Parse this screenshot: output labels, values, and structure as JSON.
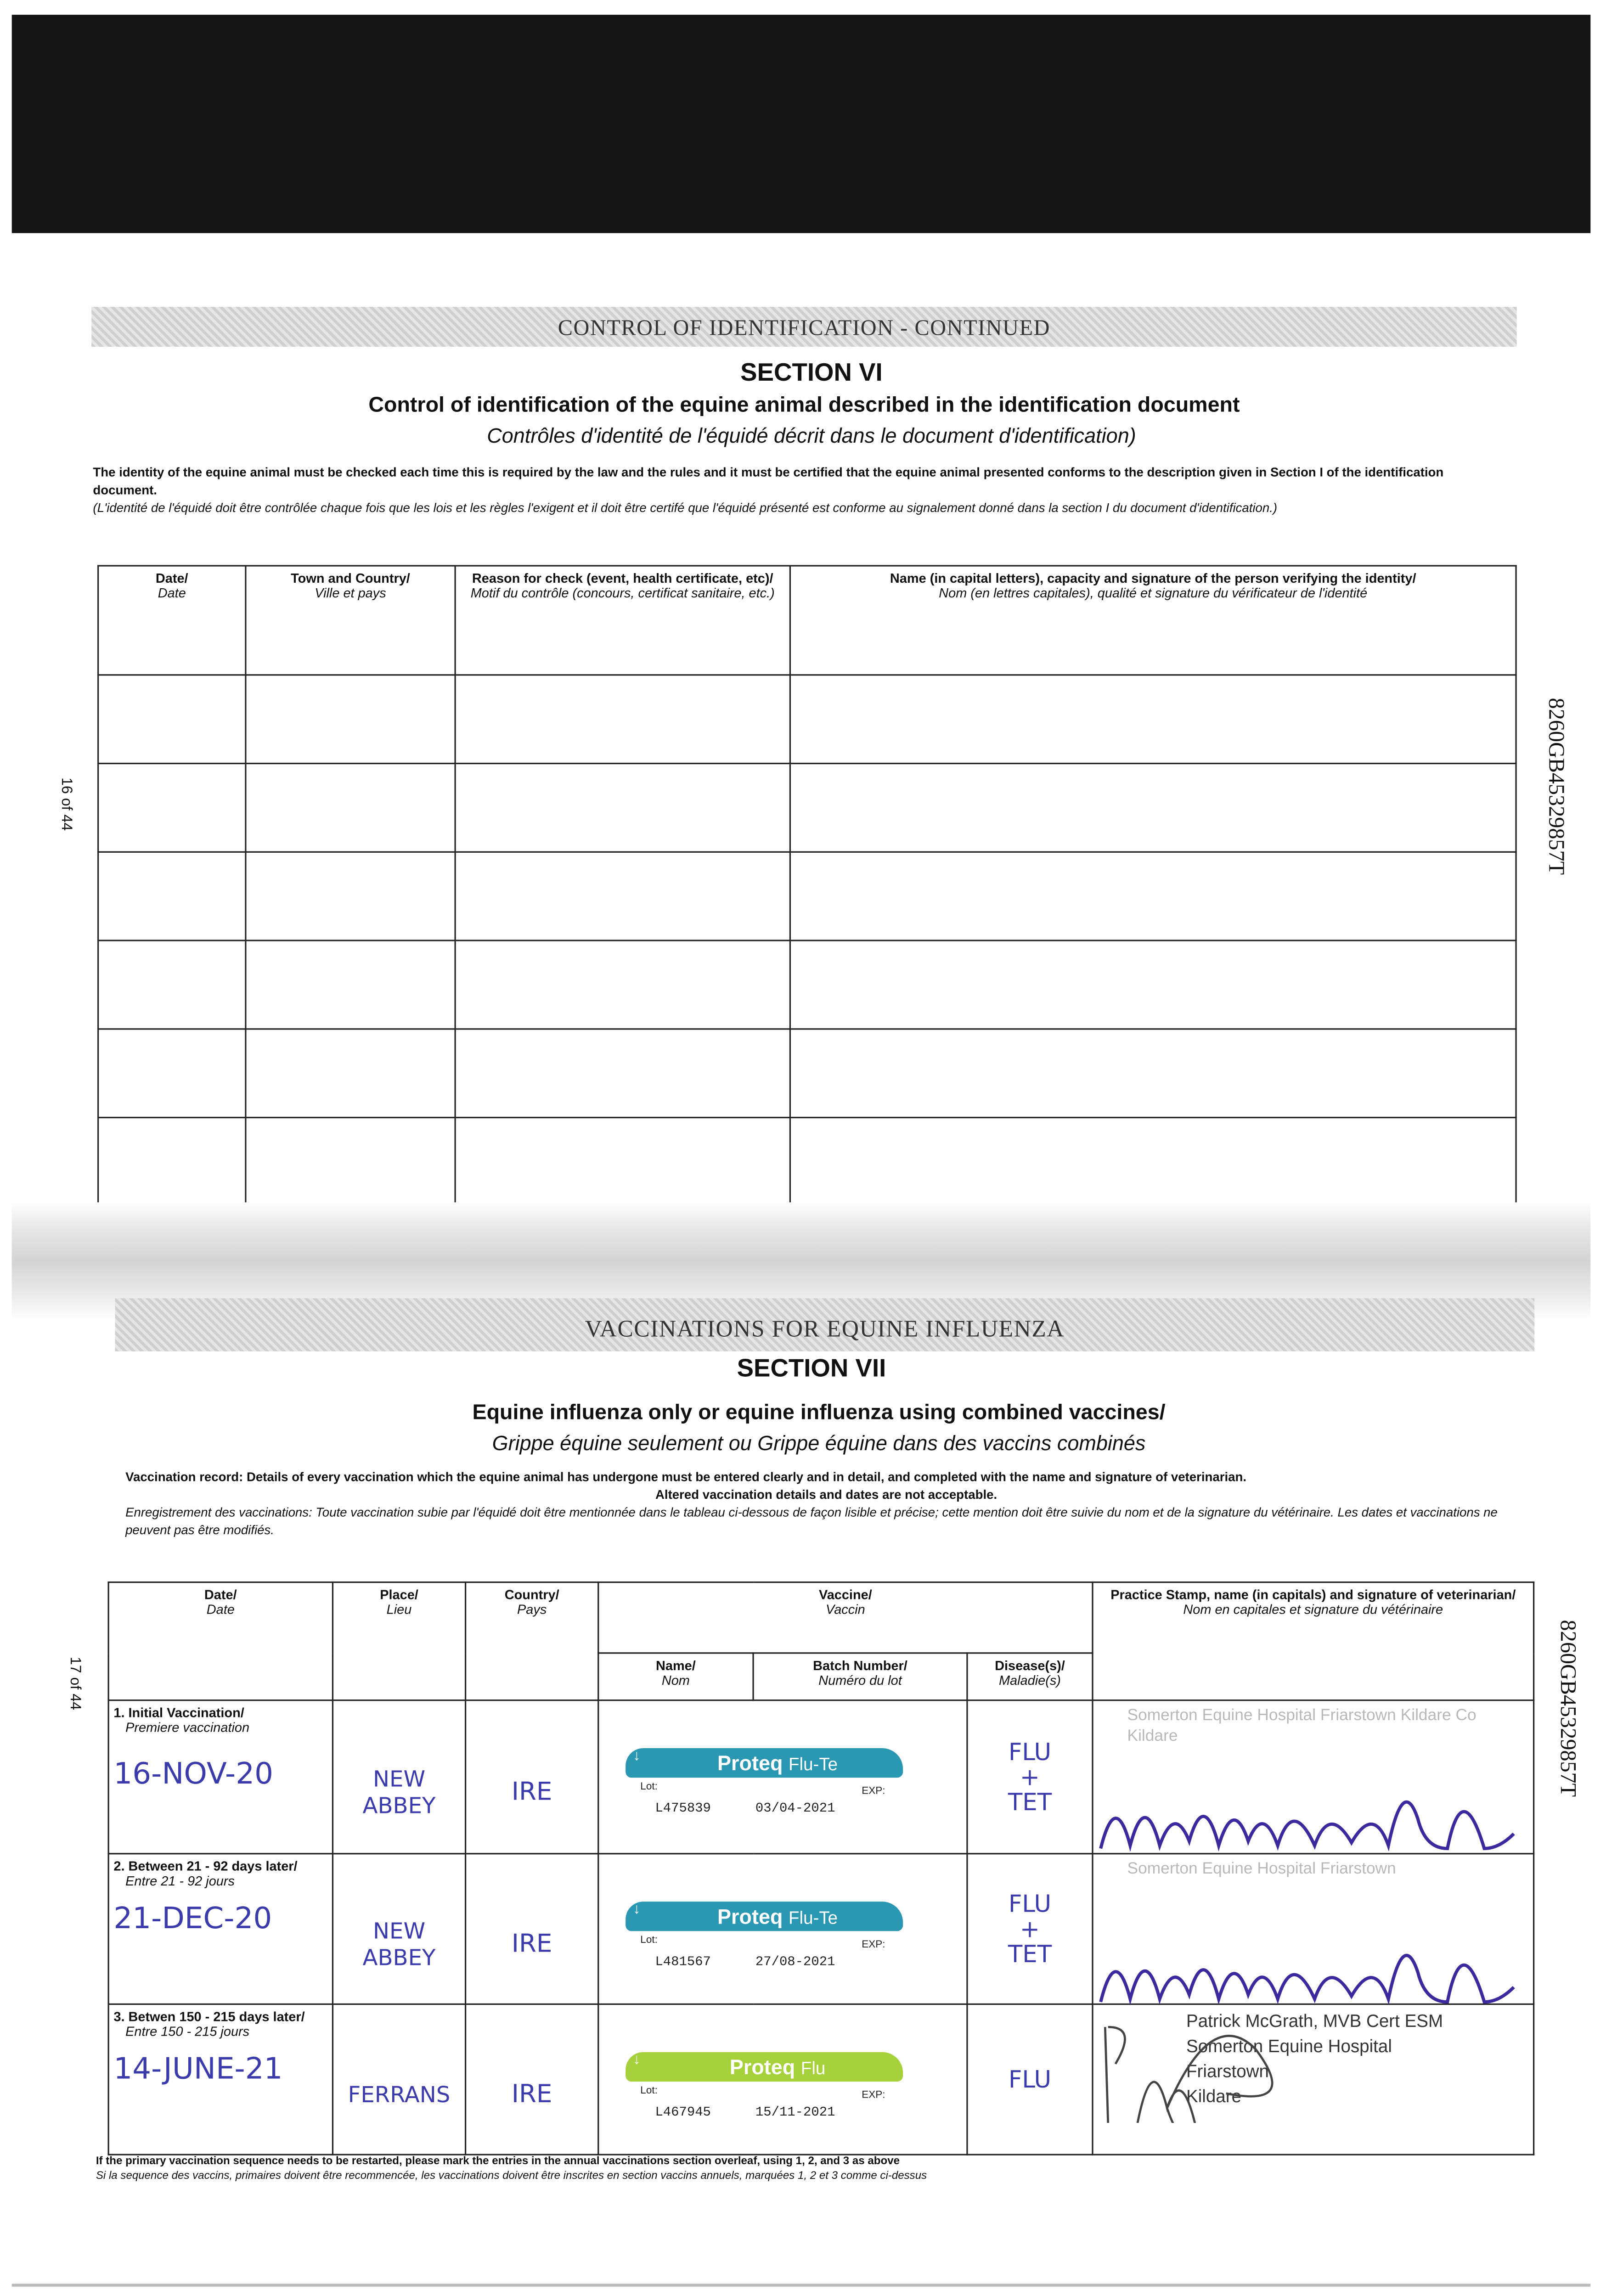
{
  "page_labels": {
    "left_top": "16 of 44",
    "left_bottom": "17 of 44",
    "doc_id": "8260GB45329857T"
  },
  "section6": {
    "banner": "CONTROL OF IDENTIFICATION - CONTINUED",
    "heading": "SECTION VI",
    "title": "Control of identification of the equine animal described in the identification document",
    "title_fr": "Contrôles d'identité de l'équidé décrit dans le document d'identification)",
    "para_en": "The identity of the equine animal must be checked each time this is required by the law and the rules and it must be certified that the equine animal presented conforms to the description given in Section I of the identification document.",
    "para_fr": "(L'identité de l'équidé doit être contrôlée chaque fois que les lois et les règles l'exigent et il doit être certifé que l'équidé présenté est conforme au signalement donné dans la section I du document d'identification.)",
    "columns": [
      {
        "en": "Date/",
        "fr": "Date"
      },
      {
        "en": "Town and Country/",
        "fr": "Ville et pays"
      },
      {
        "en": "Reason for check (event, health certificate, etc)/",
        "fr": "Motif du contrôle (concours, certificat sanitaire, etc.)"
      },
      {
        "en": "Name (in capital letters), capacity and signature of the person verifying the identity/",
        "fr": "Nom (en lettres capitales), qualité et signature du vérificateur de l'identité"
      }
    ]
  },
  "section7": {
    "banner": "VACCINATIONS FOR EQUINE INFLUENZA",
    "heading": "SECTION VII",
    "title": "Equine influenza only or equine influenza using combined vaccines/",
    "title_fr": "Grippe équine seulement ou Grippe équine dans des vaccins combinés",
    "para_en": "Vaccination record: Details of every vaccination which the equine animal has undergone must be entered clearly and in detail, and completed with the name and signature of veterinarian.",
    "para_en2": "Altered vaccination details and dates are not acceptable.",
    "para_fr": "Enregistrement des vaccinations: Toute vaccination subie par l'équidé doit être mentionnée dans le tableau ci-dessous de façon lisible et précise; cette mention doit être suivie du nom et de la signature du vétérinaire. Les dates et vaccinations ne peuvent pas être modifiés.",
    "headers": {
      "date": {
        "en": "Date/",
        "fr": "Date"
      },
      "place": {
        "en": "Place/",
        "fr": "Lieu"
      },
      "country": {
        "en": "Country/",
        "fr": "Pays"
      },
      "vaccine": {
        "en": "Vaccine/",
        "fr": "Vaccin"
      },
      "name": {
        "en": "Name/",
        "fr": "Nom"
      },
      "batch": {
        "en": "Batch Number/",
        "fr": "Numéro du lot"
      },
      "disease": {
        "en": "Disease(s)/",
        "fr": "Maladie(s)"
      },
      "stamp": {
        "en": "Practice Stamp, name (in capitals) and signature of veterinarian/",
        "fr": "Nom en capitales et signature du vétérinaire"
      }
    },
    "rows": [
      {
        "step_en": "1. Initial Vaccination/",
        "step_fr": "Premiere vaccination",
        "date": "16-NOV-20",
        "place": "NEW ABBEY",
        "country": "IRE",
        "vaccine_brand": "Proteq",
        "vaccine_variant": "Flu-Te",
        "lot_label": "Lot:",
        "exp_label": "EXP:",
        "lot": "L475839",
        "exp": "03/04-2021",
        "disease": "FLU + TET",
        "stamp_text": "Somerton Equine Hospital Friarstown Kildare Co Kildare",
        "label_color": "#2b98b3"
      },
      {
        "step_en": "2. Between 21 - 92 days later/",
        "step_fr": "Entre 21 - 92 jours",
        "date": "21-DEC-20",
        "place": "NEW ABBEY",
        "country": "IRE",
        "vaccine_brand": "Proteq",
        "vaccine_variant": "Flu-Te",
        "lot_label": "Lot:",
        "exp_label": "EXP:",
        "lot": "L481567",
        "exp": "27/08-2021",
        "disease": "FLU + TET",
        "stamp_text": "Somerton Equine Hospital Friarstown",
        "label_color": "#2b98b3"
      },
      {
        "step_en": "3. Betwen 150 - 215 days later/",
        "step_fr": "Entre 150 - 215 jours",
        "date": "14-JUNE-21",
        "place": "FERRANS",
        "country": "IRE",
        "vaccine_brand": "Proteq",
        "vaccine_variant": "Flu",
        "lot_label": "Lot:",
        "exp_label": "EXP:",
        "lot": "L467945",
        "exp": "15/11-2021",
        "disease": "FLU",
        "stamp_text": "Patrick McGrath, MVB Cert ESM\nSomerton Equine Hospital\nFriarstown\nKildare",
        "label_color": "#a6d13a"
      }
    ],
    "footer_en": "If the primary vaccination sequence needs to be restarted, please mark the entries in the annual vaccinations section overleaf, using 1, 2, and 3 as above",
    "footer_fr": "Si la sequence des vaccins, primaires doivent être recommencée, les vaccinations doivent être inscrites en section vaccins annuels, marquées 1, 2 et 3 comme ci-dessus"
  }
}
